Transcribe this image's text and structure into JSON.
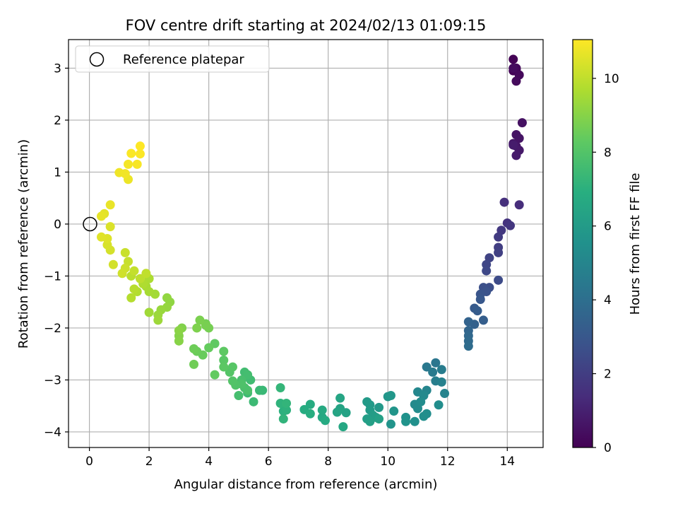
{
  "chart_data": {
    "type": "scatter",
    "title": "FOV centre drift starting at 2024/02/13 01:09:15",
    "xlabel": "Angular distance from reference (arcmin)",
    "ylabel": "Rotation from reference (arcmin)",
    "colorbar_label": "Hours from first FF file",
    "xlim": [
      -0.7,
      15.2
    ],
    "ylim": [
      -4.3,
      3.55
    ],
    "clim": [
      0,
      11.05
    ],
    "x_ticks": [
      0,
      2,
      4,
      6,
      8,
      10,
      12,
      14
    ],
    "y_ticks": [
      -4,
      -3,
      -2,
      -1,
      0,
      1,
      2,
      3
    ],
    "colorbar_ticks": [
      0,
      2,
      4,
      6,
      8,
      10
    ],
    "grid": true,
    "legend": {
      "position": "top-left",
      "entries": [
        "Reference platepar"
      ]
    },
    "colormap": "viridis",
    "reference_point": {
      "x": 0,
      "y": 0,
      "label": "Reference platepar"
    },
    "points": [
      [
        14.2,
        3.17,
        0.05
      ],
      [
        14.2,
        2.95,
        0.1
      ],
      [
        14.3,
        2.98,
        0.15
      ],
      [
        14.3,
        3.0,
        0.2
      ],
      [
        14.4,
        2.87,
        0.25
      ],
      [
        14.3,
        2.75,
        0.3
      ],
      [
        14.2,
        3.0,
        0.35
      ],
      [
        14.5,
        1.95,
        0.5
      ],
      [
        14.3,
        1.72,
        0.55
      ],
      [
        14.4,
        1.65,
        0.6
      ],
      [
        14.2,
        1.55,
        0.65
      ],
      [
        14.3,
        1.5,
        0.7
      ],
      [
        14.4,
        1.42,
        0.75
      ],
      [
        14.3,
        1.32,
        0.8
      ],
      [
        14.2,
        1.52,
        0.85
      ],
      [
        14.4,
        0.37,
        1.4
      ],
      [
        13.9,
        0.42,
        1.5
      ],
      [
        14.0,
        0.02,
        1.6
      ],
      [
        14.1,
        -0.03,
        1.7
      ],
      [
        13.8,
        -0.12,
        1.8
      ],
      [
        13.7,
        -0.25,
        1.9
      ],
      [
        13.7,
        -0.45,
        2.0
      ],
      [
        13.7,
        -0.55,
        2.1
      ],
      [
        13.4,
        -0.65,
        2.2
      ],
      [
        13.3,
        -0.78,
        2.3
      ],
      [
        13.3,
        -0.9,
        2.4
      ],
      [
        13.7,
        -1.08,
        2.5
      ],
      [
        13.4,
        -1.22,
        2.6
      ],
      [
        13.2,
        -1.22,
        2.7
      ],
      [
        13.3,
        -1.3,
        2.8
      ],
      [
        13.1,
        -1.35,
        2.9
      ],
      [
        13.1,
        -1.45,
        3.0
      ],
      [
        12.9,
        -1.62,
        3.1
      ],
      [
        13.0,
        -1.67,
        3.2
      ],
      [
        13.2,
        -1.85,
        3.3
      ],
      [
        12.9,
        -1.93,
        3.4
      ],
      [
        12.7,
        -1.88,
        3.5
      ],
      [
        12.7,
        -2.05,
        3.6
      ],
      [
        12.7,
        -2.15,
        3.7
      ],
      [
        12.7,
        -2.25,
        3.8
      ],
      [
        12.7,
        -2.35,
        3.9
      ],
      [
        11.6,
        -2.67,
        4.3
      ],
      [
        11.3,
        -2.75,
        4.4
      ],
      [
        11.5,
        -2.85,
        4.5
      ],
      [
        11.8,
        -2.8,
        4.6
      ],
      [
        11.6,
        -3.02,
        4.7
      ],
      [
        11.8,
        -3.04,
        4.8
      ],
      [
        11.9,
        -3.26,
        4.9
      ],
      [
        11.3,
        -3.2,
        5.0
      ],
      [
        11.0,
        -3.23,
        5.1
      ],
      [
        11.2,
        -3.3,
        5.15
      ],
      [
        10.9,
        -3.47,
        5.2
      ],
      [
        11.0,
        -3.55,
        5.25
      ],
      [
        11.1,
        -3.42,
        5.3
      ],
      [
        11.7,
        -3.48,
        5.35
      ],
      [
        11.3,
        -3.65,
        5.4
      ],
      [
        11.2,
        -3.7,
        5.45
      ],
      [
        10.9,
        -3.8,
        5.5
      ],
      [
        10.6,
        -3.72,
        5.55
      ],
      [
        10.6,
        -3.8,
        5.6
      ],
      [
        10.1,
        -3.85,
        5.65
      ],
      [
        10.2,
        -3.6,
        5.7
      ],
      [
        10.0,
        -3.32,
        5.75
      ],
      [
        10.1,
        -3.3,
        5.8
      ],
      [
        9.7,
        -3.53,
        5.85
      ],
      [
        9.4,
        -3.48,
        5.9
      ],
      [
        9.3,
        -3.42,
        5.95
      ],
      [
        9.4,
        -3.58,
        6.0
      ],
      [
        9.5,
        -3.68,
        6.05
      ],
      [
        9.6,
        -3.72,
        6.1
      ],
      [
        9.3,
        -3.75,
        6.15
      ],
      [
        9.4,
        -3.8,
        6.2
      ],
      [
        9.7,
        -3.75,
        6.25
      ],
      [
        8.6,
        -3.63,
        6.35
      ],
      [
        8.4,
        -3.55,
        6.4
      ],
      [
        8.3,
        -3.62,
        6.45
      ],
      [
        8.4,
        -3.35,
        6.5
      ],
      [
        8.5,
        -3.9,
        6.55
      ],
      [
        7.8,
        -3.72,
        6.6
      ],
      [
        7.8,
        -3.58,
        6.65
      ],
      [
        7.9,
        -3.78,
        6.7
      ],
      [
        7.4,
        -3.47,
        6.75
      ],
      [
        7.2,
        -3.57,
        6.8
      ],
      [
        7.4,
        -3.65,
        6.85
      ],
      [
        6.5,
        -3.6,
        7.0
      ],
      [
        6.6,
        -3.58,
        7.05
      ],
      [
        6.4,
        -3.45,
        7.1
      ],
      [
        6.5,
        -3.75,
        7.15
      ],
      [
        6.6,
        -3.45,
        7.2
      ],
      [
        6.4,
        -3.15,
        7.25
      ],
      [
        5.8,
        -3.2,
        7.35
      ],
      [
        5.7,
        -3.2,
        7.4
      ],
      [
        5.5,
        -3.42,
        7.45
      ],
      [
        5.3,
        -3.25,
        7.5
      ],
      [
        5.4,
        -3.0,
        7.55
      ],
      [
        5.2,
        -2.85,
        7.6
      ],
      [
        5.3,
        -2.9,
        7.65
      ],
      [
        5.0,
        -3.3,
        7.7
      ],
      [
        5.1,
        -3.0,
        7.75
      ],
      [
        5.2,
        -3.15,
        7.8
      ],
      [
        5.3,
        -3.2,
        7.85
      ],
      [
        5.1,
        -3.08,
        7.9
      ],
      [
        4.9,
        -3.1,
        7.95
      ],
      [
        4.8,
        -3.02,
        8.0
      ],
      [
        4.7,
        -2.85,
        8.05
      ],
      [
        4.8,
        -2.75,
        8.1
      ],
      [
        4.5,
        -2.62,
        8.15
      ],
      [
        4.5,
        -2.75,
        8.2
      ],
      [
        4.5,
        -2.45,
        8.25
      ],
      [
        4.2,
        -2.3,
        8.3
      ],
      [
        4.2,
        -2.9,
        8.35
      ],
      [
        4.0,
        -2.38,
        8.4
      ],
      [
        3.8,
        -2.52,
        8.45
      ],
      [
        3.6,
        -2.45,
        8.5
      ],
      [
        3.5,
        -2.4,
        8.55
      ],
      [
        3.5,
        -2.7,
        8.6
      ],
      [
        3.9,
        -1.92,
        8.65
      ],
      [
        4.0,
        -2.0,
        8.7
      ],
      [
        3.9,
        -1.95,
        8.75
      ],
      [
        3.7,
        -1.85,
        8.8
      ],
      [
        3.6,
        -2.0,
        8.85
      ],
      [
        3.1,
        -2.0,
        8.9
      ],
      [
        3.0,
        -2.15,
        8.95
      ],
      [
        3.0,
        -2.25,
        9.0
      ],
      [
        3.0,
        -2.05,
        9.05
      ],
      [
        2.7,
        -1.5,
        9.15
      ],
      [
        2.6,
        -1.42,
        9.2
      ],
      [
        2.6,
        -1.6,
        9.25
      ],
      [
        2.4,
        -1.65,
        9.3
      ],
      [
        2.3,
        -1.75,
        9.35
      ],
      [
        2.3,
        -1.85,
        9.4
      ],
      [
        2.0,
        -1.7,
        9.45
      ],
      [
        2.2,
        -1.35,
        9.5
      ],
      [
        2.0,
        -1.3,
        9.55
      ],
      [
        1.9,
        -1.2,
        9.6
      ],
      [
        2.0,
        -1.05,
        9.65
      ],
      [
        1.8,
        -1.15,
        9.7
      ],
      [
        1.6,
        -1.3,
        9.75
      ],
      [
        1.4,
        -1.42,
        9.8
      ],
      [
        1.5,
        -1.25,
        9.85
      ],
      [
        1.4,
        -1.0,
        9.9
      ],
      [
        1.7,
        -1.05,
        9.95
      ],
      [
        1.9,
        -0.95,
        10.0
      ],
      [
        1.5,
        -0.9,
        10.05
      ],
      [
        1.3,
        -0.72,
        10.1
      ],
      [
        1.2,
        -0.55,
        10.15
      ],
      [
        1.2,
        -0.85,
        10.2
      ],
      [
        1.1,
        -0.95,
        10.25
      ],
      [
        0.8,
        -0.78,
        10.3
      ],
      [
        0.7,
        -0.5,
        10.35
      ],
      [
        0.6,
        -0.4,
        10.4
      ],
      [
        0.7,
        -0.05,
        10.45
      ],
      [
        0.6,
        -0.28,
        10.5
      ],
      [
        0.4,
        -0.25,
        10.55
      ],
      [
        0.5,
        0.2,
        10.6
      ],
      [
        0.4,
        0.15,
        10.65
      ],
      [
        0.7,
        0.37,
        10.7
      ],
      [
        1.3,
        0.86,
        10.75
      ],
      [
        1.0,
        0.99,
        10.8
      ],
      [
        1.2,
        0.97,
        10.85
      ],
      [
        1.3,
        1.15,
        10.9
      ],
      [
        1.6,
        1.15,
        10.95
      ],
      [
        1.4,
        1.36,
        11.0
      ],
      [
        1.7,
        1.35,
        11.02
      ],
      [
        1.7,
        1.5,
        11.05
      ]
    ]
  }
}
